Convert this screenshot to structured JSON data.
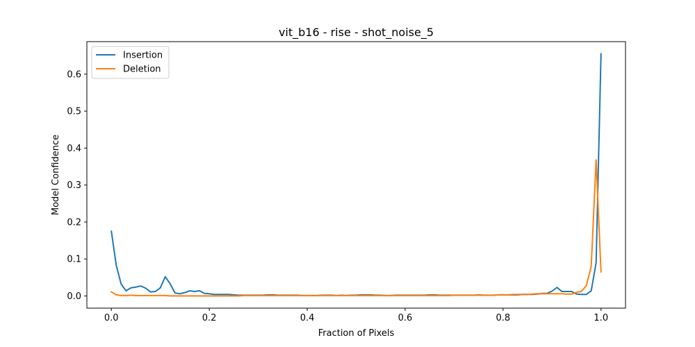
{
  "chart_data": {
    "type": "line",
    "title": "vit_b16 - rise - shot_noise_5",
    "xlabel": "Fraction of Pixels",
    "ylabel": "Model Confidence",
    "xlim": [
      -0.05,
      1.05
    ],
    "ylim": [
      -0.033,
      0.688
    ],
    "xticks": [
      0.0,
      0.2,
      0.4,
      0.6,
      0.8,
      1.0
    ],
    "xtick_labels": [
      "0.0",
      "0.2",
      "0.4",
      "0.6",
      "0.8",
      "1.0"
    ],
    "yticks": [
      0.0,
      0.1,
      0.2,
      0.3,
      0.4,
      0.5,
      0.6
    ],
    "ytick_labels": [
      "0.0",
      "0.1",
      "0.2",
      "0.3",
      "0.4",
      "0.5",
      "0.6"
    ],
    "grid": false,
    "legend_position": "top-left",
    "x": [
      0.0,
      0.01,
      0.02,
      0.03,
      0.04,
      0.05,
      0.06,
      0.07,
      0.08,
      0.09,
      0.1,
      0.11,
      0.12,
      0.13,
      0.14,
      0.15,
      0.16,
      0.17,
      0.18,
      0.19,
      0.2,
      0.21,
      0.22,
      0.23,
      0.24,
      0.25,
      0.26,
      0.27,
      0.28,
      0.29,
      0.3,
      0.31,
      0.32,
      0.33,
      0.34,
      0.35,
      0.36,
      0.37,
      0.38,
      0.39,
      0.4,
      0.41,
      0.42,
      0.43,
      0.44,
      0.45,
      0.46,
      0.47,
      0.48,
      0.49,
      0.5,
      0.51,
      0.52,
      0.53,
      0.54,
      0.55,
      0.56,
      0.57,
      0.58,
      0.59,
      0.6,
      0.61,
      0.62,
      0.63,
      0.64,
      0.65,
      0.66,
      0.67,
      0.68,
      0.69,
      0.7,
      0.71,
      0.72,
      0.73,
      0.74,
      0.75,
      0.76,
      0.77,
      0.78,
      0.79,
      0.8,
      0.81,
      0.82,
      0.83,
      0.84,
      0.85,
      0.86,
      0.87,
      0.88,
      0.89,
      0.9,
      0.91,
      0.92,
      0.93,
      0.94,
      0.95,
      0.96,
      0.97,
      0.98,
      0.99,
      1.0
    ],
    "series": [
      {
        "name": "Insertion",
        "color": "#1f77b4",
        "values": [
          0.175,
          0.083,
          0.032,
          0.014,
          0.022,
          0.024,
          0.027,
          0.021,
          0.011,
          0.012,
          0.022,
          0.052,
          0.033,
          0.008,
          0.006,
          0.009,
          0.014,
          0.012,
          0.014,
          0.007,
          0.006,
          0.004,
          0.004,
          0.004,
          0.004,
          0.003,
          0.002,
          0.002,
          0.002,
          0.002,
          0.002,
          0.002,
          0.003,
          0.003,
          0.002,
          0.002,
          0.002,
          0.002,
          0.002,
          0.001,
          0.001,
          0.001,
          0.001,
          0.002,
          0.002,
          0.002,
          0.001,
          0.002,
          0.001,
          0.002,
          0.002,
          0.003,
          0.003,
          0.003,
          0.002,
          0.002,
          0.001,
          0.001,
          0.002,
          0.002,
          0.002,
          0.002,
          0.002,
          0.002,
          0.002,
          0.003,
          0.003,
          0.002,
          0.002,
          0.002,
          0.002,
          0.002,
          0.002,
          0.002,
          0.002,
          0.003,
          0.002,
          0.002,
          0.002,
          0.003,
          0.003,
          0.003,
          0.003,
          0.003,
          0.004,
          0.004,
          0.004,
          0.005,
          0.007,
          0.007,
          0.013,
          0.023,
          0.012,
          0.012,
          0.012,
          0.005,
          0.004,
          0.004,
          0.014,
          0.09,
          0.655
        ]
      },
      {
        "name": "Deletion",
        "color": "#ff7f0e",
        "values": [
          0.011,
          0.003,
          0.001,
          0.001,
          0.002,
          0.001,
          0.001,
          0.001,
          0.001,
          0.001,
          0.001,
          0.001,
          0.0,
          0.0,
          0.0,
          0.0,
          0.0,
          0.0,
          0.0,
          0.0,
          0.0,
          0.0,
          0.0,
          0.0,
          0.0,
          0.0,
          0.0,
          0.001,
          0.001,
          0.001,
          0.001,
          0.001,
          0.001,
          0.001,
          0.001,
          0.001,
          0.001,
          0.001,
          0.001,
          0.001,
          0.001,
          0.001,
          0.001,
          0.001,
          0.001,
          0.001,
          0.001,
          0.001,
          0.001,
          0.001,
          0.001,
          0.001,
          0.001,
          0.001,
          0.001,
          0.001,
          0.001,
          0.001,
          0.001,
          0.001,
          0.001,
          0.001,
          0.001,
          0.001,
          0.001,
          0.001,
          0.001,
          0.001,
          0.001,
          0.001,
          0.002,
          0.002,
          0.002,
          0.002,
          0.002,
          0.002,
          0.002,
          0.002,
          0.002,
          0.003,
          0.003,
          0.003,
          0.004,
          0.004,
          0.004,
          0.004,
          0.005,
          0.006,
          0.006,
          0.006,
          0.006,
          0.006,
          0.006,
          0.005,
          0.005,
          0.01,
          0.012,
          0.028,
          0.08,
          0.368,
          0.065
        ]
      }
    ]
  }
}
